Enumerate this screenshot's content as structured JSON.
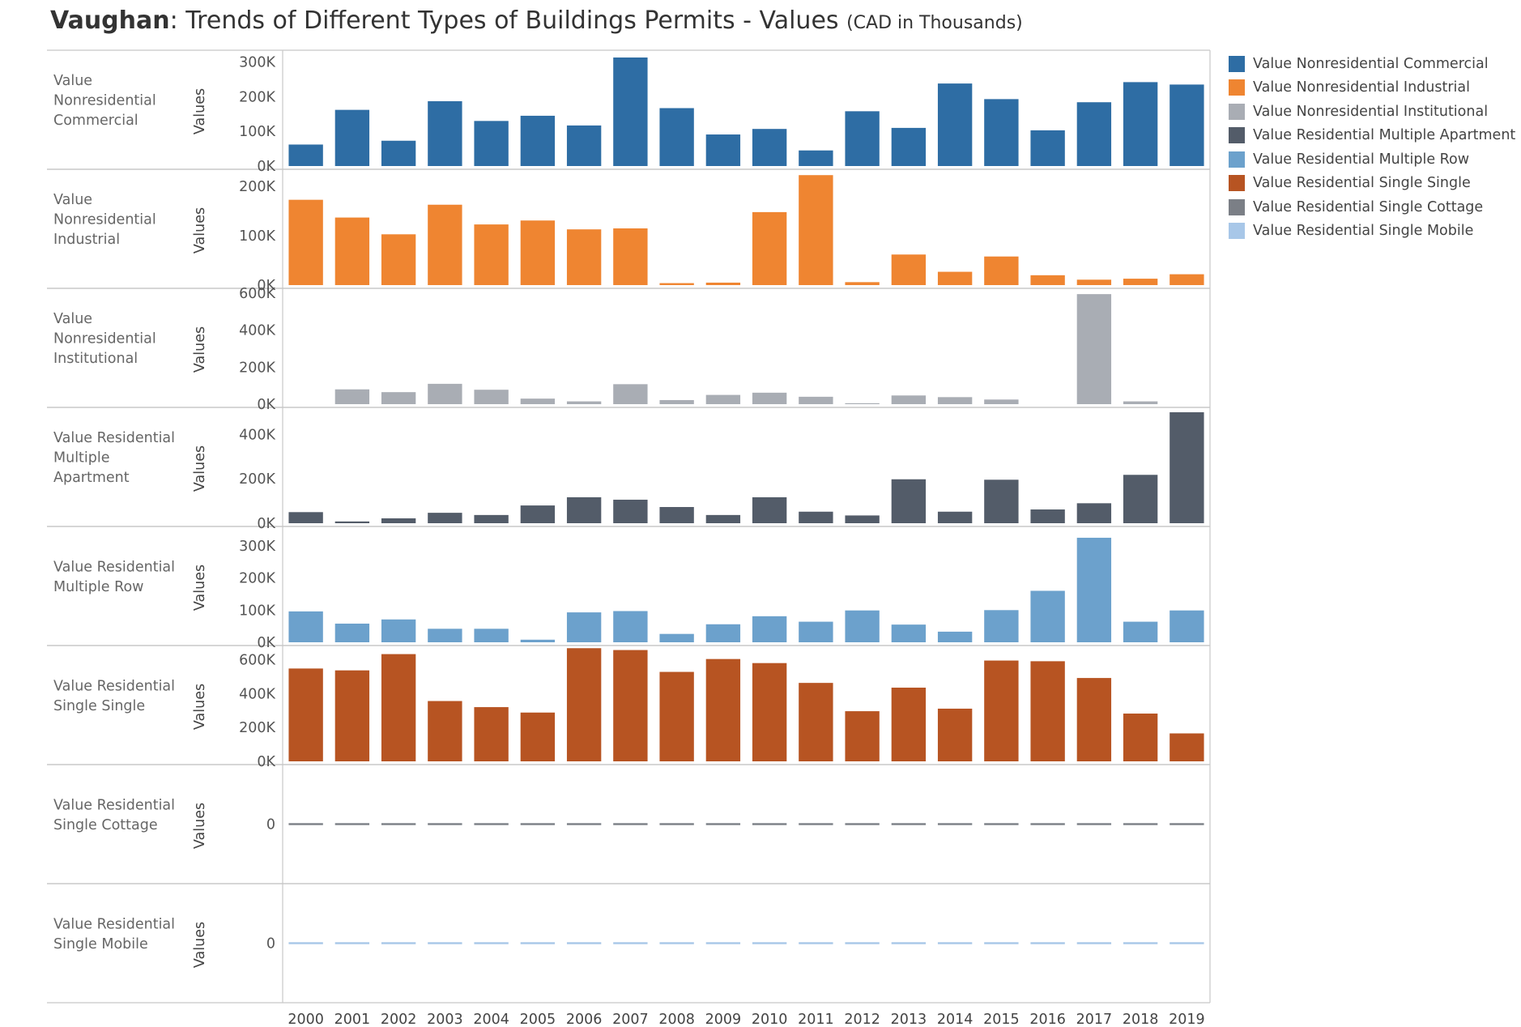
{
  "title": {
    "bold": "Vaughan",
    "main": ": Trends of Different Types of Buildings Permits - Values ",
    "units": "(CAD in Thousands)"
  },
  "chart_data": {
    "type": "bar",
    "axis_measure_label": "Values",
    "categories": [
      "2000",
      "2001",
      "2002",
      "2003",
      "2004",
      "2005",
      "2006",
      "2007",
      "2008",
      "2009",
      "2010",
      "2011",
      "2012",
      "2013",
      "2014",
      "2015",
      "2016",
      "2017",
      "2018",
      "2019"
    ],
    "series": [
      {
        "name": "Value Nonresidential Commercial",
        "row_label": [
          "Value",
          "Nonresidential",
          "Commercial"
        ],
        "color": "#2e6da4",
        "ylim": [
          0,
          320
        ],
        "ticks": [
          0,
          100,
          200,
          300
        ],
        "tick_labels": [
          "0K",
          "100K",
          "200K",
          "300K"
        ],
        "values": [
          62,
          162,
          73,
          187,
          130,
          145,
          117,
          313,
          167,
          91,
          107,
          45,
          158,
          110,
          238,
          193,
          103,
          184,
          242,
          235
        ]
      },
      {
        "name": "Value Nonresidential Industrial",
        "row_label": [
          "Value",
          "Nonresidential",
          "Industrial"
        ],
        "color": "#ef8531",
        "ylim": [
          0,
          225
        ],
        "ticks": [
          0,
          100,
          200
        ],
        "tick_labels": [
          "0K",
          "100K",
          "200K"
        ],
        "values": [
          173,
          137,
          103,
          163,
          123,
          131,
          113,
          115,
          4,
          5,
          148,
          223,
          6,
          62,
          27,
          58,
          20,
          11,
          13,
          22
        ]
      },
      {
        "name": "Value Nonresidential Institutional",
        "row_label": [
          "Value",
          "Nonresidential",
          "Institutional"
        ],
        "color": "#a9adb4",
        "ylim": [
          0,
          600
        ],
        "ticks": [
          0,
          200,
          400,
          600
        ],
        "tick_labels": [
          "0K",
          "200K",
          "400K",
          "600K"
        ],
        "values": [
          0,
          80,
          65,
          110,
          78,
          30,
          15,
          108,
          22,
          50,
          62,
          40,
          5,
          47,
          38,
          25,
          0,
          595,
          15,
          0
        ]
      },
      {
        "name": "Value Residential Multiple Apartment",
        "row_label": [
          "Value Residential",
          "Multiple",
          "Apartment"
        ],
        "color": "#535c69",
        "ylim": [
          0,
          500
        ],
        "ticks": [
          0,
          200,
          400
        ],
        "tick_labels": [
          "0K",
          "200K",
          "400K"
        ],
        "values": [
          50,
          8,
          22,
          47,
          37,
          80,
          117,
          106,
          73,
          37,
          117,
          52,
          35,
          198,
          52,
          196,
          62,
          90,
          218,
          500
        ]
      },
      {
        "name": "Value Residential Multiple Row",
        "row_label": [
          "Value Residential",
          "Multiple Row"
        ],
        "color": "#6ca1cc",
        "ylim": [
          0,
          345
        ],
        "ticks": [
          0,
          100,
          200,
          300
        ],
        "tick_labels": [
          "0K",
          "100K",
          "200K",
          "300K"
        ],
        "values": [
          96,
          58,
          71,
          42,
          42,
          8,
          93,
          97,
          26,
          56,
          81,
          64,
          99,
          55,
          33,
          100,
          160,
          325,
          64,
          99
        ]
      },
      {
        "name": "Value Residential Single Single",
        "row_label": [
          "Value Residential",
          "Single Single"
        ],
        "color": "#b75422",
        "ylim": [
          0,
          655
        ],
        "ticks": [
          0,
          200,
          400,
          600
        ],
        "tick_labels": [
          "0K",
          "200K",
          "400K",
          "600K"
        ],
        "values": [
          548,
          537,
          633,
          356,
          320,
          288,
          668,
          657,
          528,
          604,
          580,
          463,
          296,
          435,
          311,
          595,
          591,
          492,
          282,
          165
        ]
      },
      {
        "name": "Value Residential Single Cottage",
        "row_label": [
          "Value Residential",
          "Single Cottage"
        ],
        "color": "#7b7f86",
        "ylim": [
          -1,
          1
        ],
        "ticks": [
          0
        ],
        "tick_labels": [
          "0"
        ],
        "values": [
          0,
          0,
          0,
          0,
          0,
          0,
          0,
          0,
          0,
          0,
          0,
          0,
          0,
          0,
          0,
          0,
          0,
          0,
          0,
          0
        ]
      },
      {
        "name": "Value Residential Single Mobile",
        "row_label": [
          "Value Residential",
          "Single Mobile"
        ],
        "color": "#a8c7e8",
        "ylim": [
          -1,
          1
        ],
        "ticks": [
          0
        ],
        "tick_labels": [
          "0"
        ],
        "values": [
          0,
          0,
          0,
          0,
          0,
          0,
          0,
          0,
          0,
          0,
          0,
          0,
          0,
          0,
          0,
          0,
          0,
          0,
          0,
          0
        ]
      }
    ]
  }
}
